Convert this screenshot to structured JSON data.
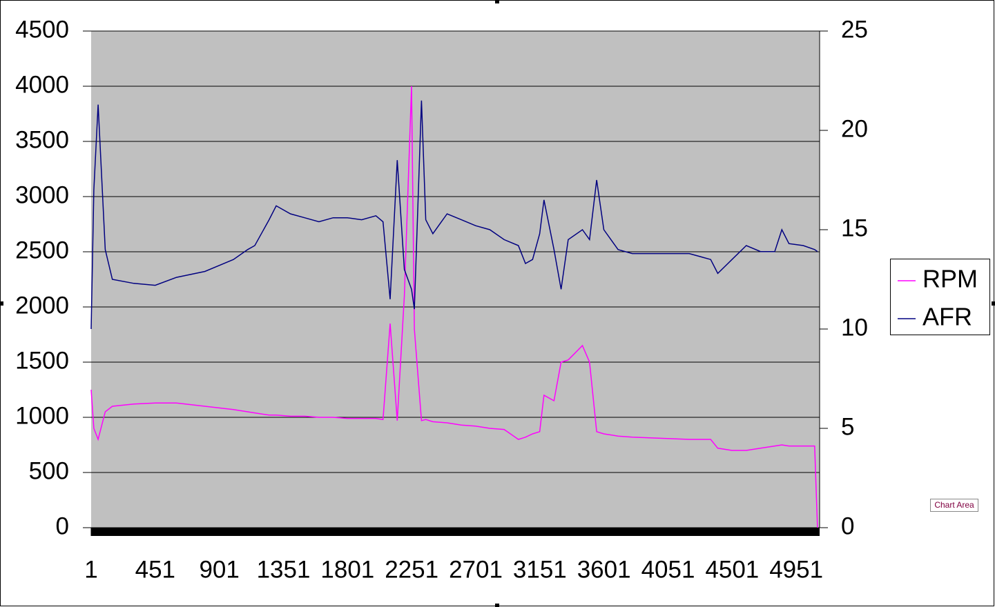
{
  "chart_data": {
    "type": "line",
    "x": [
      1,
      20,
      50,
      100,
      150,
      300,
      451,
      600,
      800,
      1000,
      1100,
      1150,
      1250,
      1300,
      1400,
      1500,
      1600,
      1700,
      1800,
      1900,
      2000,
      2050,
      2100,
      2150,
      2200,
      2250,
      2270,
      2320,
      2350,
      2400,
      2500,
      2600,
      2700,
      2800,
      2900,
      3000,
      3050,
      3100,
      3150,
      3180,
      3250,
      3300,
      3350,
      3450,
      3500,
      3550,
      3600,
      3700,
      3800,
      4000,
      4200,
      4350,
      4400,
      4500,
      4600,
      4700,
      4800,
      4850,
      4900,
      5000,
      5080,
      5100
    ],
    "series": [
      {
        "name": "RPM",
        "color": "#ff00ff",
        "axis": "y",
        "values": [
          1250,
          900,
          800,
          1050,
          1100,
          1120,
          1130,
          1130,
          1100,
          1070,
          1050,
          1040,
          1020,
          1020,
          1010,
          1010,
          1000,
          1000,
          990,
          990,
          990,
          980,
          1850,
          970,
          2100,
          4000,
          1800,
          970,
          980,
          960,
          950,
          930,
          920,
          900,
          890,
          800,
          820,
          850,
          870,
          1200,
          1150,
          1500,
          1520,
          1650,
          1500,
          870,
          850,
          830,
          820,
          810,
          800,
          800,
          720,
          700,
          700,
          720,
          740,
          750,
          740,
          740,
          740,
          0
        ]
      },
      {
        "name": "AFR",
        "color": "#000080",
        "axis": "y2",
        "values": [
          10,
          17,
          21.3,
          14,
          12.5,
          12.3,
          12.2,
          12.6,
          12.9,
          13.5,
          14,
          14.2,
          15.5,
          16.2,
          15.8,
          15.6,
          15.4,
          15.6,
          15.6,
          15.5,
          15.7,
          15.4,
          11.5,
          18.5,
          13,
          12,
          11,
          21.5,
          15.5,
          14.8,
          15.8,
          15.5,
          15.2,
          15,
          14.5,
          14.2,
          13.3,
          13.5,
          14.8,
          16.5,
          14,
          12,
          14.5,
          15,
          14.5,
          17.5,
          15,
          14,
          13.8,
          13.8,
          13.8,
          13.5,
          12.8,
          13.5,
          14.2,
          13.9,
          13.9,
          15,
          14.3,
          14.2,
          14,
          13.9
        ]
      }
    ],
    "xlim": [
      1,
      5115
    ],
    "xticks": [
      1,
      451,
      901,
      1351,
      1801,
      2251,
      2701,
      3151,
      3601,
      4051,
      4501,
      4951
    ],
    "ylim": [
      0,
      4500
    ],
    "yticks": [
      0,
      500,
      1000,
      1500,
      2000,
      2500,
      3000,
      3500,
      4000,
      4500
    ],
    "y2lim": [
      0,
      25
    ],
    "y2ticks": [
      0,
      5,
      10,
      15,
      20,
      25
    ],
    "grid": true,
    "legend": "right",
    "plot_background": "#c0c0c0",
    "tooltip": "Chart Area"
  }
}
